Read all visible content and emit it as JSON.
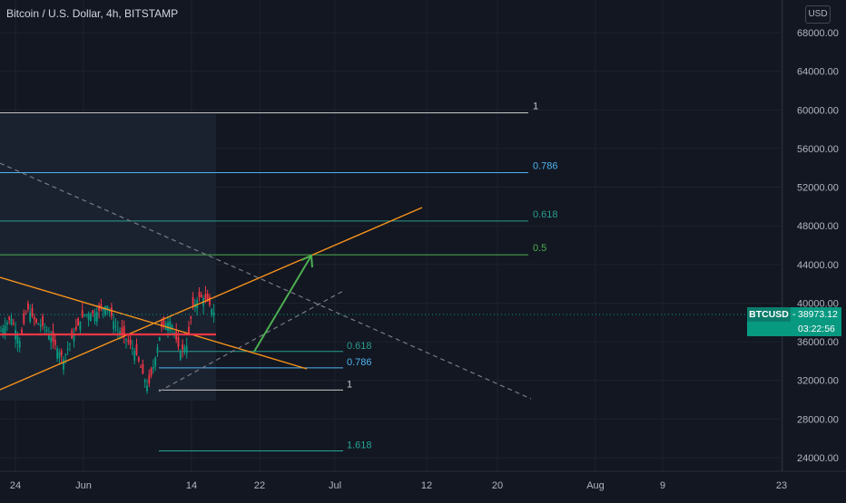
{
  "header": {
    "title": "Bitcoin / U.S. Dollar, 4h, BITSTAMP"
  },
  "axis": {
    "currency": "USD"
  },
  "ticker": {
    "symbol": "BTCUSD",
    "price": "38973.12",
    "countdown": "03:22:56"
  },
  "colors": {
    "background": "#131722",
    "grid": "#1e222d",
    "up": "#089981",
    "down": "#f23645",
    "trend": "#f7931a",
    "fib1": "#c9c9c9",
    "fib786": "#4fb4f0",
    "fib618": "#2a9d8f",
    "fib05": "#4caf50",
    "fib1618": "#26a69a",
    "arrow": "#4caf50",
    "support": "#f23645",
    "dashed": "#787b86"
  },
  "chart_data": {
    "type": "candlestick",
    "timeframe": "4h",
    "x_ticks": [
      "24",
      "Jun",
      "14",
      "22",
      "Jul",
      "12",
      "20",
      "Aug",
      "9",
      "23"
    ],
    "y_ticks": [
      "24000.00",
      "28000.00",
      "32000.00",
      "36000.00",
      "40000.00",
      "44000.00",
      "48000.00",
      "52000.00",
      "56000.00",
      "60000.00",
      "64000.00",
      "68000.00"
    ],
    "ylim": [
      22000,
      70500
    ],
    "last_price": 38973.12,
    "upper_fib": [
      {
        "label": "1",
        "value": 59700
      },
      {
        "label": "0.786",
        "value": 53500
      },
      {
        "label": "0.618",
        "value": 48500
      },
      {
        "label": "0.5",
        "value": 45000
      }
    ],
    "lower_fib": [
      {
        "label": "0.618",
        "value": 35000
      },
      {
        "label": "0.786",
        "value": 33300
      },
      {
        "label": "1",
        "value": 31000
      },
      {
        "label": "1.618",
        "value": 24700
      }
    ],
    "support_level": 37000
  }
}
